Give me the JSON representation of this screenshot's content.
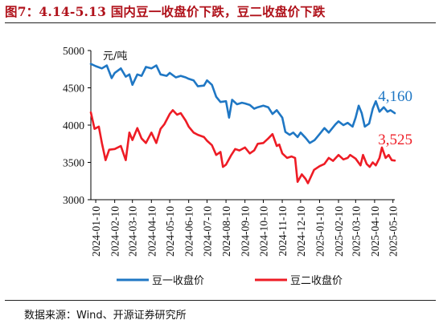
{
  "title": "图7：4.14-5.13 国内豆一收盘价下跌，豆二收盘价下跌",
  "source": "数据来源：Wind、开源证券研究所",
  "chart_data": {
    "type": "line",
    "title": "图7：4.14-5.13 国内豆一收盘价下跌，豆二收盘价下跌",
    "unit_label": "元/吨",
    "xlabel": "",
    "ylabel": "",
    "ylim": [
      3000,
      5000
    ],
    "yticks": [
      3000,
      3500,
      4000,
      4500,
      5000
    ],
    "xlim": [
      "2024-01-02",
      "2025-05-13"
    ],
    "xticks": [
      "2024-01-10",
      "2024-02-10",
      "2024-03-10",
      "2024-04-10",
      "2024-05-10",
      "2024-06-10",
      "2024-07-10",
      "2024-08-10",
      "2024-09-10",
      "2024-10-10",
      "2024-11-10",
      "2024-12-10",
      "2025-01-10",
      "2025-02-10",
      "2025-03-10",
      "2025-04-10",
      "2025-05-10"
    ],
    "grid": false,
    "legend": "bottom",
    "series": [
      {
        "name": "豆一收盘价",
        "color": "#1f77c4",
        "end_label": "4,160",
        "points": [
          [
            "2024-01-02",
            4820
          ],
          [
            "2024-01-10",
            4790
          ],
          [
            "2024-01-20",
            4760
          ],
          [
            "2024-01-28",
            4800
          ],
          [
            "2024-02-05",
            4630
          ],
          [
            "2024-02-10",
            4700
          ],
          [
            "2024-02-20",
            4760
          ],
          [
            "2024-02-28",
            4650
          ],
          [
            "2024-03-05",
            4680
          ],
          [
            "2024-03-10",
            4540
          ],
          [
            "2024-03-18",
            4680
          ],
          [
            "2024-03-25",
            4660
          ],
          [
            "2024-04-01",
            4780
          ],
          [
            "2024-04-10",
            4760
          ],
          [
            "2024-04-18",
            4800
          ],
          [
            "2024-04-25",
            4680
          ],
          [
            "2024-05-05",
            4660
          ],
          [
            "2024-05-10",
            4700
          ],
          [
            "2024-05-20",
            4640
          ],
          [
            "2024-05-28",
            4660
          ],
          [
            "2024-06-05",
            4640
          ],
          [
            "2024-06-10",
            4620
          ],
          [
            "2024-06-18",
            4600
          ],
          [
            "2024-06-25",
            4520
          ],
          [
            "2024-07-05",
            4530
          ],
          [
            "2024-07-10",
            4600
          ],
          [
            "2024-07-18",
            4540
          ],
          [
            "2024-07-25",
            4380
          ],
          [
            "2024-08-01",
            4310
          ],
          [
            "2024-08-10",
            4320
          ],
          [
            "2024-08-15",
            4100
          ],
          [
            "2024-08-20",
            4340
          ],
          [
            "2024-08-28",
            4280
          ],
          [
            "2024-09-05",
            4300
          ],
          [
            "2024-09-10",
            4290
          ],
          [
            "2024-09-18",
            4270
          ],
          [
            "2024-09-25",
            4220
          ],
          [
            "2024-10-01",
            4240
          ],
          [
            "2024-10-10",
            4260
          ],
          [
            "2024-10-18",
            4240
          ],
          [
            "2024-10-25",
            4150
          ],
          [
            "2024-11-01",
            4200
          ],
          [
            "2024-11-10",
            4100
          ],
          [
            "2024-11-15",
            3910
          ],
          [
            "2024-11-22",
            3870
          ],
          [
            "2024-11-28",
            3900
          ],
          [
            "2024-12-05",
            3840
          ],
          [
            "2024-12-10",
            3900
          ],
          [
            "2024-12-18",
            3830
          ],
          [
            "2024-12-25",
            3760
          ],
          [
            "2025-01-02",
            3800
          ],
          [
            "2025-01-10",
            3880
          ],
          [
            "2025-01-18",
            3960
          ],
          [
            "2025-01-25",
            3900
          ],
          [
            "2025-02-05",
            4010
          ],
          [
            "2025-02-10",
            4050
          ],
          [
            "2025-02-18",
            4000
          ],
          [
            "2025-02-25",
            4030
          ],
          [
            "2025-03-05",
            3980
          ],
          [
            "2025-03-10",
            4100
          ],
          [
            "2025-03-15",
            4260
          ],
          [
            "2025-03-20",
            4160
          ],
          [
            "2025-03-25",
            3980
          ],
          [
            "2025-04-01",
            4020
          ],
          [
            "2025-04-07",
            4220
          ],
          [
            "2025-04-12",
            4320
          ],
          [
            "2025-04-18",
            4180
          ],
          [
            "2025-04-25",
            4240
          ],
          [
            "2025-05-01",
            4180
          ],
          [
            "2025-05-06",
            4200
          ],
          [
            "2025-05-13",
            4160
          ]
        ]
      },
      {
        "name": "豆二收盘价",
        "color": "#ee1c25",
        "end_label": "3,525",
        "points": [
          [
            "2024-01-02",
            4170
          ],
          [
            "2024-01-08",
            3950
          ],
          [
            "2024-01-15",
            3980
          ],
          [
            "2024-01-20",
            3760
          ],
          [
            "2024-01-26",
            3530
          ],
          [
            "2024-02-01",
            3670
          ],
          [
            "2024-02-10",
            3680
          ],
          [
            "2024-02-20",
            3720
          ],
          [
            "2024-02-28",
            3530
          ],
          [
            "2024-03-05",
            3900
          ],
          [
            "2024-03-10",
            3800
          ],
          [
            "2024-03-18",
            3960
          ],
          [
            "2024-03-25",
            3820
          ],
          [
            "2024-04-01",
            3760
          ],
          [
            "2024-04-10",
            3900
          ],
          [
            "2024-04-18",
            3760
          ],
          [
            "2024-04-25",
            3950
          ],
          [
            "2024-05-01",
            4010
          ],
          [
            "2024-05-10",
            4150
          ],
          [
            "2024-05-15",
            4200
          ],
          [
            "2024-05-22",
            4140
          ],
          [
            "2024-05-28",
            4160
          ],
          [
            "2024-06-05",
            4060
          ],
          [
            "2024-06-10",
            3980
          ],
          [
            "2024-06-18",
            3900
          ],
          [
            "2024-06-25",
            3870
          ],
          [
            "2024-07-05",
            3840
          ],
          [
            "2024-07-10",
            3790
          ],
          [
            "2024-07-18",
            3730
          ],
          [
            "2024-07-25",
            3600
          ],
          [
            "2024-08-01",
            3640
          ],
          [
            "2024-08-05",
            3440
          ],
          [
            "2024-08-10",
            3470
          ],
          [
            "2024-08-18",
            3590
          ],
          [
            "2024-08-25",
            3680
          ],
          [
            "2024-09-01",
            3660
          ],
          [
            "2024-09-10",
            3700
          ],
          [
            "2024-09-18",
            3620
          ],
          [
            "2024-09-25",
            3660
          ],
          [
            "2024-10-01",
            3750
          ],
          [
            "2024-10-10",
            3760
          ],
          [
            "2024-10-18",
            3820
          ],
          [
            "2024-10-25",
            3880
          ],
          [
            "2024-11-01",
            3720
          ],
          [
            "2024-11-05",
            3740
          ],
          [
            "2024-11-10",
            3620
          ],
          [
            "2024-11-18",
            3560
          ],
          [
            "2024-11-25",
            3580
          ],
          [
            "2024-12-01",
            3560
          ],
          [
            "2024-12-05",
            3240
          ],
          [
            "2024-12-12",
            3340
          ],
          [
            "2024-12-18",
            3280
          ],
          [
            "2024-12-22",
            3220
          ],
          [
            "2025-01-01",
            3400
          ],
          [
            "2025-01-10",
            3450
          ],
          [
            "2025-01-18",
            3480
          ],
          [
            "2025-01-25",
            3560
          ],
          [
            "2025-02-01",
            3520
          ],
          [
            "2025-02-10",
            3600
          ],
          [
            "2025-02-18",
            3540
          ],
          [
            "2025-02-25",
            3560
          ],
          [
            "2025-03-01",
            3600
          ],
          [
            "2025-03-10",
            3550
          ],
          [
            "2025-03-18",
            3460
          ],
          [
            "2025-03-22",
            3600
          ],
          [
            "2025-03-28",
            3480
          ],
          [
            "2025-04-02",
            3440
          ],
          [
            "2025-04-07",
            3500
          ],
          [
            "2025-04-12",
            3460
          ],
          [
            "2025-04-18",
            3560
          ],
          [
            "2025-04-22",
            3700
          ],
          [
            "2025-04-28",
            3560
          ],
          [
            "2025-05-03",
            3600
          ],
          [
            "2025-05-08",
            3530
          ],
          [
            "2025-05-13",
            3525
          ]
        ]
      }
    ]
  }
}
